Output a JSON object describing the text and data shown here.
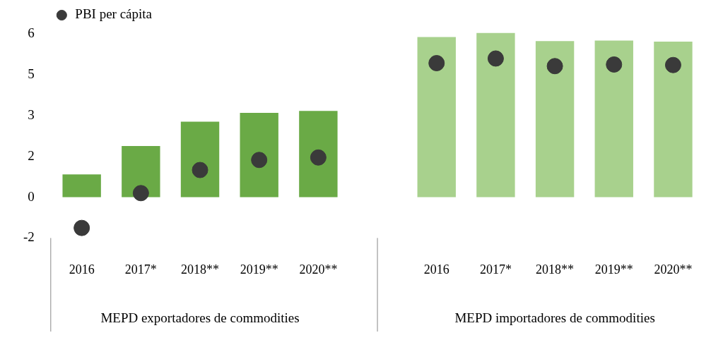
{
  "chart_data": {
    "type": "bar",
    "categories": [
      "2016",
      "2017*",
      "2018**",
      "2019**",
      "2020**",
      null,
      "2016",
      "2017*",
      "2018**",
      "2019**",
      "2020**"
    ],
    "series": [
      {
        "colors": [
          "#6aaa46",
          "#6aaa46",
          "#6aaa46",
          "#6aaa46",
          "#6aaa46",
          null,
          "#a8d18d",
          "#a8d18d",
          "#a8d18d",
          "#a8d18d",
          "#a8d18d"
        ],
        "values": [
          0.84,
          1.88,
          2.78,
          3.1,
          3.17,
          null,
          5.89,
          6.04,
          5.74,
          5.76,
          5.72
        ]
      },
      {
        "type": "scatter",
        "name": "PBI per cápita",
        "color": "#3a3a3a",
        "marker": "circle",
        "values": [
          -1.13,
          0.15,
          1.0,
          1.37,
          1.46,
          null,
          4.93,
          5.1,
          4.82,
          4.88,
          4.86
        ]
      }
    ],
    "ylim": [
      -1.5,
      6.1
    ],
    "yticks": [
      {
        "value": -1.5,
        "label": "-2"
      },
      {
        "value": 0,
        "label": "0"
      },
      {
        "value": 1.5,
        "label": "2"
      },
      {
        "value": 3,
        "label": "3"
      },
      {
        "value": 4.5,
        "label": "5"
      },
      {
        "value": 6,
        "label": "6"
      }
    ],
    "grid": false,
    "legend": "top left",
    "annotations": [
      "MEPD exportadores de commodities",
      "MEPD importadores de commodities"
    ]
  }
}
